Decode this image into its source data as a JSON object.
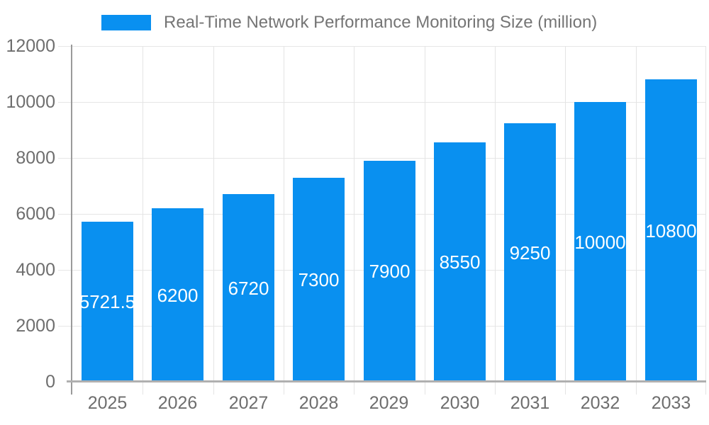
{
  "legend": {
    "label": "Real-Time Network Performance Monitoring Size (million)"
  },
  "chart_data": {
    "type": "bar",
    "title": "Real-Time Network Performance Monitoring Size (million)",
    "series_name": "Real-Time Network Performance Monitoring Size (million)",
    "categories": [
      "2025",
      "2026",
      "2027",
      "2028",
      "2029",
      "2030",
      "2031",
      "2032",
      "2033"
    ],
    "values": [
      5721.5,
      6200,
      6720,
      7300,
      7900,
      8550,
      9250,
      10000,
      10800
    ],
    "value_labels": [
      "5721.5",
      "6200",
      "6720",
      "7300",
      "7900",
      "8550",
      "9250",
      "10000",
      "10800"
    ],
    "xlabel": "",
    "ylabel": "",
    "ylim": [
      0,
      12000
    ],
    "y_ticks": [
      0,
      2000,
      4000,
      6000,
      8000,
      10000,
      12000
    ],
    "grid": true,
    "legend_position": "top-left",
    "colors": {
      "bar": "#0990f0",
      "value_label": "#ffffff",
      "axis_text": "#6e6e6e",
      "legend_text": "#757575",
      "gridline": "#e6e6e6",
      "x_axis_line": "#b0b0b0",
      "y_axis_line": "#9a9a9a",
      "background": "#ffffff"
    }
  }
}
